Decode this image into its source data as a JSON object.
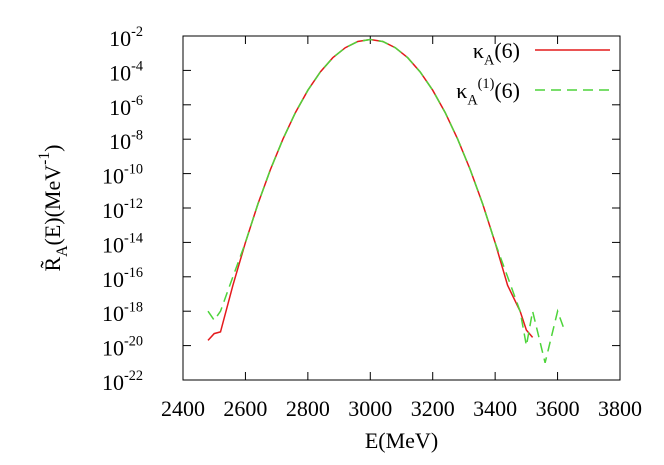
{
  "chart_data": {
    "type": "line",
    "log_y": true,
    "x_label": "E(MeV)",
    "y_label": [
      {
        "t": "R̃"
      },
      {
        "sub": "A"
      },
      {
        "t": "(E)(MeV"
      },
      {
        "sup": "-1"
      },
      {
        "t": ")"
      }
    ],
    "x": [
      2480,
      2500,
      2520,
      2560,
      2600,
      2640,
      2680,
      2720,
      2760,
      2800,
      2840,
      2880,
      2920,
      2960,
      3000,
      3040,
      3080,
      3120,
      3160,
      3200,
      3240,
      3280,
      3320,
      3360,
      3400,
      3440,
      3480,
      3500,
      3520,
      3560,
      3600,
      3620
    ],
    "series": [
      {
        "name": [
          {
            "t": "κ"
          },
          {
            "sub": "A"
          },
          {
            "t": "(6)"
          }
        ],
        "color": "#e41a1c",
        "dash": false,
        "values": [
          2e-20,
          5e-20,
          6.3e-20,
          3.2e-17,
          9.8e-15,
          1.7e-12,
          1.7e-10,
          1e-08,
          3.5e-07,
          7.1e-06,
          8.1e-05,
          0.00055,
          0.0021,
          0.0048,
          0.0063,
          0.0048,
          0.0021,
          0.00055,
          8.1e-05,
          7.1e-06,
          3.5e-07,
          1e-08,
          1.7e-10,
          1.7e-12,
          9.8e-15,
          3.2e-17,
          1e-18,
          8e-20,
          3e-20,
          null,
          null,
          null
        ]
      },
      {
        "name": [
          {
            "t": "κ"
          },
          {
            "sub": "A"
          },
          {
            "sup": "(1)"
          },
          {
            "t": "(6)"
          }
        ],
        "color": "#4dd43a",
        "dash": true,
        "values": [
          1e-18,
          3e-19,
          1e-18,
          1e-16,
          9.8e-15,
          1.7e-12,
          1.7e-10,
          1e-08,
          3.5e-07,
          7.1e-06,
          8.1e-05,
          0.00055,
          0.0021,
          0.0048,
          0.0063,
          0.0048,
          0.0021,
          0.00055,
          8.1e-05,
          7.1e-06,
          3.5e-07,
          1e-08,
          1.7e-10,
          1.7e-12,
          9.8e-15,
          1e-16,
          1e-18,
          1e-20,
          1e-18,
          1e-21,
          1e-18,
          1e-19
        ]
      }
    ],
    "xlim": [
      2400,
      3800
    ],
    "xticks": [
      2400,
      2600,
      2800,
      3000,
      3200,
      3400,
      3600,
      3800
    ],
    "ylim": [
      1e-22,
      0.01
    ],
    "yticks": [
      {
        "value": 1e-22,
        "label": [
          {
            "t": "10"
          },
          {
            "sup": "-22"
          }
        ]
      },
      {
        "value": 1e-20,
        "label": [
          {
            "t": "10"
          },
          {
            "sup": "-20"
          }
        ]
      },
      {
        "value": 1e-18,
        "label": [
          {
            "t": "10"
          },
          {
            "sup": "-18"
          }
        ]
      },
      {
        "value": 1e-16,
        "label": [
          {
            "t": "10"
          },
          {
            "sup": "-16"
          }
        ]
      },
      {
        "value": 1e-14,
        "label": [
          {
            "t": "10"
          },
          {
            "sup": "-14"
          }
        ]
      },
      {
        "value": 1e-12,
        "label": [
          {
            "t": "10"
          },
          {
            "sup": "-12"
          }
        ]
      },
      {
        "value": 1e-10,
        "label": [
          {
            "t": "10"
          },
          {
            "sup": "-10"
          }
        ]
      },
      {
        "value": 1e-08,
        "label": [
          {
            "t": "10"
          },
          {
            "sup": "-8"
          }
        ]
      },
      {
        "value": 1e-06,
        "label": [
          {
            "t": "10"
          },
          {
            "sup": "-6"
          }
        ]
      },
      {
        "value": 0.0001,
        "label": [
          {
            "t": "10"
          },
          {
            "sup": "-4"
          }
        ]
      },
      {
        "value": 0.01,
        "label": [
          {
            "t": "10"
          },
          {
            "sup": "-2"
          }
        ]
      }
    ],
    "legend": "top-right",
    "grid": false
  }
}
